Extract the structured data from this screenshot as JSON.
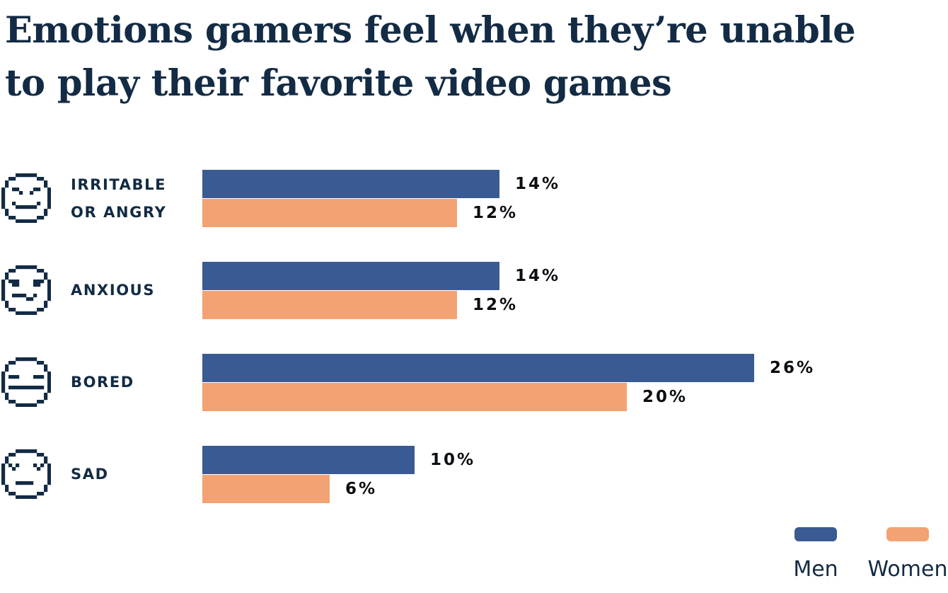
{
  "title": {
    "lines": [
      "Emotions gamers feel when they’re unable",
      "to play their favorite video games"
    ],
    "full": "Emotions gamers feel when they’re unable to play their favorite video games"
  },
  "colors": {
    "men": "#3a5a94",
    "women": "#f3a273",
    "navy_text": "#132b44",
    "value_text": "#0b0e12",
    "background": "#ffffff"
  },
  "chart_data": {
    "type": "bar",
    "orientation": "horizontal",
    "title": "Emotions gamers feel when they’re unable to play their favorite video games",
    "categories": [
      "Irritable or angry",
      "Anxious",
      "Bored",
      "Sad"
    ],
    "series": [
      {
        "name": "Men",
        "color": "#3a5a94",
        "values": [
          14,
          14,
          26,
          10
        ]
      },
      {
        "name": "Women",
        "color": "#f3a273",
        "values": [
          12,
          12,
          20,
          6
        ]
      }
    ],
    "value_suffix": "%",
    "xlim": [
      0,
      30
    ],
    "grid": false,
    "legend_position": "bottom-right",
    "data_labels": true
  },
  "rows": [
    {
      "icon": "angry-face-icon",
      "label_lines": [
        "IRRITABLE",
        "OR ANGRY"
      ],
      "men_label": "14%",
      "women_label": "12%"
    },
    {
      "icon": "anxious-face-icon",
      "label_lines": [
        "ANXIOUS"
      ],
      "men_label": "14%",
      "women_label": "12%"
    },
    {
      "icon": "bored-face-icon",
      "label_lines": [
        "BORED"
      ],
      "men_label": "26%",
      "women_label": "20%"
    },
    {
      "icon": "sad-face-icon",
      "label_lines": [
        "SAD"
      ],
      "men_label": "10%",
      "women_label": "6%"
    }
  ],
  "legend": {
    "items": [
      {
        "label": "Men",
        "color_key": "men"
      },
      {
        "label": "Women",
        "color_key": "women"
      }
    ]
  }
}
